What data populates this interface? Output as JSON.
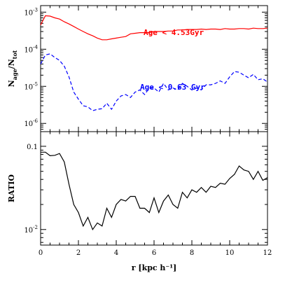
{
  "chart_data": [
    {
      "type": "line",
      "title": "",
      "xlabel": "",
      "ylabel": "N_age/N_tot",
      "ylabel_main": "N",
      "ylabel_sub1": "age",
      "ylabel_slash": "/N",
      "ylabel_sub2": "tot",
      "xlim": [
        0,
        12
      ],
      "ylim": [
        6e-07,
        0.0015
      ],
      "yscale": "log",
      "x_ticks": [
        0,
        2,
        4,
        6,
        8,
        10,
        12
      ],
      "y_ticks": [
        {
          "value": 1e-06,
          "base": "10",
          "exp": "-6"
        },
        {
          "value": 1e-05,
          "base": "10",
          "exp": "-5"
        },
        {
          "value": 0.0001,
          "base": "10",
          "exp": "-4"
        },
        {
          "value": 0.001,
          "base": "10",
          "exp": "-3"
        }
      ],
      "series": [
        {
          "name": "Age < 4.53Gyr",
          "color": "#ff0000",
          "style": "solid",
          "x": [
            0.0,
            0.25,
            0.5,
            0.75,
            1.0,
            1.25,
            1.5,
            1.75,
            2.0,
            2.25,
            2.5,
            2.75,
            3.0,
            3.25,
            3.5,
            3.75,
            4.0,
            4.25,
            4.5,
            4.75,
            5.0,
            5.25,
            5.5,
            5.75,
            6.0,
            6.25,
            6.5,
            6.75,
            7.0,
            7.25,
            7.5,
            7.75,
            8.0,
            8.25,
            8.5,
            8.75,
            9.0,
            9.25,
            9.5,
            9.75,
            10.0,
            10.25,
            10.5,
            10.75,
            11.0,
            11.25,
            11.5,
            11.75,
            12.0
          ],
          "y": [
            0.00045,
            0.0008,
            0.00078,
            0.0007,
            0.00065,
            0.00055,
            0.00048,
            0.00041,
            0.00035,
            0.0003,
            0.00026,
            0.00023,
            0.0002,
            0.00018,
            0.00018,
            0.00019,
            0.0002,
            0.00021,
            0.00022,
            0.00026,
            0.00027,
            0.00028,
            0.00028,
            0.00028,
            0.0003,
            0.0003,
            0.0003,
            0.00031,
            0.00031,
            0.00033,
            0.00033,
            0.00034,
            0.00034,
            0.00034,
            0.00035,
            0.00034,
            0.00035,
            0.00035,
            0.00034,
            0.00036,
            0.00035,
            0.00035,
            0.00036,
            0.00036,
            0.00035,
            0.00037,
            0.00036,
            0.00036,
            0.00037
          ]
        },
        {
          "name": "Age < 0.63 Gyr",
          "color": "#0000ff",
          "style": "dashed",
          "x": [
            0.0,
            0.25,
            0.5,
            0.75,
            1.0,
            1.25,
            1.5,
            1.75,
            2.0,
            2.25,
            2.5,
            2.75,
            3.0,
            3.25,
            3.5,
            3.75,
            4.0,
            4.25,
            4.5,
            4.75,
            5.0,
            5.25,
            5.5,
            5.75,
            6.0,
            6.25,
            6.5,
            6.75,
            7.0,
            7.25,
            7.5,
            7.75,
            8.0,
            8.25,
            8.5,
            8.75,
            9.0,
            9.25,
            9.5,
            9.75,
            10.0,
            10.25,
            10.5,
            10.75,
            11.0,
            11.25,
            11.5,
            11.75,
            12.0
          ],
          "y": [
            4e-05,
            7e-05,
            7.5e-05,
            6e-05,
            5e-05,
            3.5e-05,
            1.8e-05,
            7e-06,
            4.5e-06,
            3e-06,
            2.8e-06,
            2.2e-06,
            2.4e-06,
            2.5e-06,
            3.5e-06,
            2.4e-06,
            4e-06,
            5.5e-06,
            6e-06,
            5e-06,
            7e-06,
            8e-06,
            6e-06,
            9e-06,
            9e-06,
            7e-06,
            1.2e-05,
            8e-06,
            9e-06,
            8e-06,
            1.2e-05,
            1e-05,
            8e-06,
            9e-06,
            8e-06,
            1.1e-05,
            1.1e-05,
            1.2e-05,
            1.4e-05,
            1.2e-05,
            1.8e-05,
            2.5e-05,
            2.4e-05,
            2e-05,
            1.7e-05,
            2.1e-05,
            1.5e-05,
            1.6e-05,
            1.3e-05
          ]
        }
      ]
    },
    {
      "type": "line",
      "title": "",
      "xlabel": "r [kpc h⁻¹]",
      "ylabel": "RATIO",
      "xlim": [
        0,
        12
      ],
      "ylim": [
        0.0065,
        0.15
      ],
      "yscale": "log",
      "x_ticks": [
        0,
        2,
        4,
        6,
        8,
        10,
        12
      ],
      "y_ticks": [
        {
          "value": 0.01,
          "base": "10",
          "exp": "-2"
        },
        {
          "value": 0.1,
          "base": "0.1",
          "exp": ""
        }
      ],
      "series": [
        {
          "name": "",
          "color": "#000000",
          "style": "solid",
          "x": [
            0.0,
            0.25,
            0.5,
            0.75,
            1.0,
            1.25,
            1.5,
            1.75,
            2.0,
            2.25,
            2.5,
            2.75,
            3.0,
            3.25,
            3.5,
            3.75,
            4.0,
            4.25,
            4.5,
            4.75,
            5.0,
            5.25,
            5.5,
            5.75,
            6.0,
            6.25,
            6.5,
            6.75,
            7.0,
            7.25,
            7.5,
            7.75,
            8.0,
            8.25,
            8.5,
            8.75,
            9.0,
            9.25,
            9.5,
            9.75,
            10.0,
            10.25,
            10.5,
            10.75,
            11.0,
            11.25,
            11.5,
            11.75,
            12.0
          ],
          "y": [
            0.085,
            0.085,
            0.077,
            0.078,
            0.082,
            0.065,
            0.035,
            0.02,
            0.016,
            0.011,
            0.014,
            0.01,
            0.012,
            0.011,
            0.018,
            0.014,
            0.02,
            0.023,
            0.022,
            0.025,
            0.025,
            0.018,
            0.018,
            0.016,
            0.024,
            0.016,
            0.022,
            0.026,
            0.02,
            0.018,
            0.028,
            0.024,
            0.03,
            0.028,
            0.032,
            0.028,
            0.033,
            0.032,
            0.036,
            0.035,
            0.041,
            0.046,
            0.058,
            0.052,
            0.05,
            0.04,
            0.05,
            0.039,
            0.042
          ]
        }
      ]
    }
  ]
}
